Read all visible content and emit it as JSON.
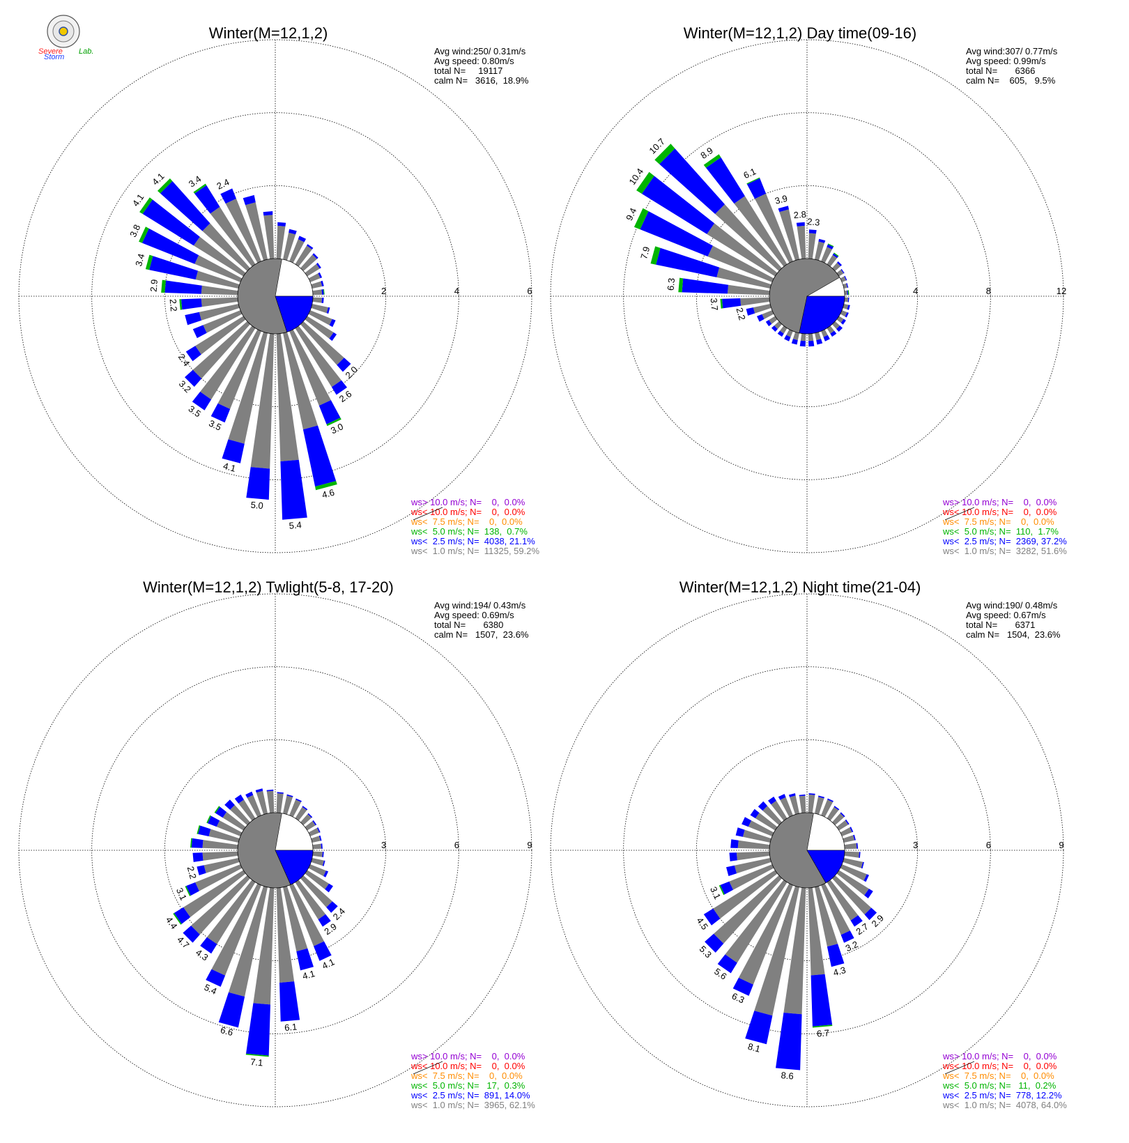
{
  "logo": {
    "text_a": "Severe",
    "text_b": "Storm",
    "text_c": "Lab."
  },
  "legend_labels": [
    "ws> 10.0 m/s; N=",
    "ws< 10.0 m/s; N=",
    "ws<  7.5 m/s; N=",
    "ws<  5.0 m/s; N=",
    "ws<  2.5 m/s; N=",
    "ws<  1.0 m/s; N="
  ],
  "colors": {
    "gt10": "#9400d3",
    "lt10": "#ff0000",
    "lt75": "#ff8c00",
    "lt50": "#00b400",
    "lt25": "#0000ff",
    "lt10ms": "#808080",
    "calm_fill": "#808080",
    "calm_blank": "#ffffff"
  },
  "chart_data": [
    {
      "type": "polar-bar",
      "title": "Winter(M=12,1,2)",
      "stats": [
        "Avg wind:250/ 0.31m/s",
        "Avg speed: 0.80m/s",
        "total N=     19117",
        "calm N=   3616,  18.9%"
      ],
      "rings": [
        "2",
        "4",
        "6"
      ],
      "rmax": 6,
      "legend_values": [
        "  0,  0.0%",
        "  0,  0.0%",
        "  0,  0.0%",
        "138,  0.7%",
        "4038, 21.1%",
        "11325, 59.2%"
      ],
      "bars": [
        {
          "dir": 5,
          "g": 0.9,
          "b": 0.1,
          "gr": 0
        },
        {
          "dir": 15,
          "g": 0.75,
          "b": 0.1,
          "gr": 0
        },
        {
          "dir": 25,
          "g": 0.65,
          "b": 0.1,
          "gr": 0
        },
        {
          "dir": 35,
          "g": 0.6,
          "b": 0.05,
          "gr": 0
        },
        {
          "dir": 45,
          "g": 0.5,
          "b": 0.05,
          "gr": 0
        },
        {
          "dir": 55,
          "g": 0.4,
          "b": 0.05,
          "gr": 0
        },
        {
          "dir": 65,
          "g": 0.3,
          "b": 0.05,
          "gr": 0
        },
        {
          "dir": 75,
          "g": 0.28,
          "b": 0.05,
          "gr": 0
        },
        {
          "dir": 85,
          "g": 0.25,
          "b": 0.05,
          "gr": 0.02
        },
        {
          "dir": 95,
          "g": 0.25,
          "b": 0.05,
          "gr": 0
        },
        {
          "dir": 105,
          "g": 0.45,
          "b": 0.05,
          "gr": 0
        },
        {
          "dir": 115,
          "g": 0.65,
          "b": 0.1,
          "gr": 0
        },
        {
          "dir": 125,
          "g": 0.85,
          "b": 0.1,
          "gr": 0
        },
        {
          "dir": 135,
          "g": 1.5,
          "b": 0.25,
          "gr": 0,
          "label": "2.0"
        },
        {
          "dir": 145,
          "g": 1.9,
          "b": 0.25,
          "gr": 0,
          "label": "2.6"
        },
        {
          "dir": 155,
          "g": 2.2,
          "b": 0.55,
          "gr": 0.05,
          "label": "3.0"
        },
        {
          "dir": 165,
          "g": 2.7,
          "b": 1.6,
          "gr": 0.1,
          "label": "4.6"
        },
        {
          "dir": 175,
          "g": 3.5,
          "b": 1.6,
          "gr": 0,
          "label": "5.4"
        },
        {
          "dir": 185,
          "g": 3.7,
          "b": 0.85,
          "gr": 0,
          "label": "5.0"
        },
        {
          "dir": 195,
          "g": 3.1,
          "b": 0.55,
          "gr": 0,
          "label": "4.1"
        },
        {
          "dir": 205,
          "g": 2.3,
          "b": 0.4,
          "gr": 0,
          "label": "3.5"
        },
        {
          "dir": 215,
          "g": 2.3,
          "b": 0.35,
          "gr": 0,
          "label": "3.5"
        },
        {
          "dir": 225,
          "g": 2.0,
          "b": 0.3,
          "gr": 0,
          "label": "3.2"
        },
        {
          "dir": 235,
          "g": 1.55,
          "b": 0.3,
          "gr": 0,
          "label": "2.4"
        },
        {
          "dir": 245,
          "g": 1.1,
          "b": 0.3,
          "gr": 0
        },
        {
          "dir": 255,
          "g": 1.1,
          "b": 0.4,
          "gr": 0
        },
        {
          "dir": 265,
          "g": 1.0,
          "b": 0.55,
          "gr": 0.05,
          "label": "2.2"
        },
        {
          "dir": 275,
          "g": 1.0,
          "b": 1.0,
          "gr": 0.1,
          "label": "2.9"
        },
        {
          "dir": 285,
          "g": 1.2,
          "b": 1.3,
          "gr": 0.1,
          "label": "3.4"
        },
        {
          "dir": 295,
          "g": 1.35,
          "b": 1.55,
          "gr": 0.1,
          "label": "3.8"
        },
        {
          "dir": 305,
          "g": 1.6,
          "b": 1.65,
          "gr": 0.1,
          "label": "4.1"
        },
        {
          "dir": 315,
          "g": 1.65,
          "b": 1.55,
          "gr": 0.1,
          "label": "4.1"
        },
        {
          "dir": 325,
          "g": 1.85,
          "b": 0.7,
          "gr": 0.05,
          "label": "3.4"
        },
        {
          "dir": 335,
          "g": 1.85,
          "b": 0.3,
          "gr": 0,
          "label": "2.4"
        },
        {
          "dir": 345,
          "g": 1.6,
          "b": 0.2,
          "gr": 0
        },
        {
          "dir": 355,
          "g": 1.2,
          "b": 0.1,
          "gr": 0
        }
      ],
      "calm_fraction": 0.189,
      "calm_blue_fraction": 0.6
    },
    {
      "type": "polar-bar",
      "title": "Winter(M=12,1,2) Day time(09-16)",
      "stats": [
        "Avg wind:307/ 0.77m/s",
        "Avg speed: 0.99m/s",
        "total N=       6366",
        "calm N=    605,   9.5%"
      ],
      "rings": [
        "4",
        "8",
        "12"
      ],
      "rmax": 12,
      "legend_values": [
        "  0,  0.0%",
        "  0,  0.0%",
        "  0,  0.0%",
        "110,  1.7%",
        "2369, 37.2%",
        "3282, 51.6%"
      ],
      "bars": [
        {
          "dir": 5,
          "g": 1.4,
          "b": 0.2,
          "gr": 0,
          "label": "2.3"
        },
        {
          "dir": 15,
          "g": 1.0,
          "b": 0.15,
          "gr": 0
        },
        {
          "dir": 25,
          "g": 0.85,
          "b": 0.15,
          "gr": 0.05
        },
        {
          "dir": 35,
          "g": 0.6,
          "b": 0.1,
          "gr": 0.05
        },
        {
          "dir": 45,
          "g": 0.4,
          "b": 0.1,
          "gr": 0
        },
        {
          "dir": 55,
          "g": 0.3,
          "b": 0.05,
          "gr": 0
        },
        {
          "dir": 65,
          "g": 0.25,
          "b": 0.05,
          "gr": 0
        },
        {
          "dir": 75,
          "g": 0.2,
          "b": 0.05,
          "gr": 0
        },
        {
          "dir": 85,
          "g": 0.15,
          "b": 0.05,
          "gr": 0.05
        },
        {
          "dir": 95,
          "g": 0.2,
          "b": 0.05,
          "gr": 0
        },
        {
          "dir": 105,
          "g": 0.25,
          "b": 0.1,
          "gr": 0
        },
        {
          "dir": 115,
          "g": 0.3,
          "b": 0.1,
          "gr": 0
        },
        {
          "dir": 125,
          "g": 0.3,
          "b": 0.15,
          "gr": 0
        },
        {
          "dir": 135,
          "g": 0.35,
          "b": 0.2,
          "gr": 0
        },
        {
          "dir": 145,
          "g": 0.35,
          "b": 0.2,
          "gr": 0
        },
        {
          "dir": 155,
          "g": 0.35,
          "b": 0.25,
          "gr": 0
        },
        {
          "dir": 165,
          "g": 0.4,
          "b": 0.25,
          "gr": 0
        },
        {
          "dir": 175,
          "g": 0.4,
          "b": 0.3,
          "gr": 0
        },
        {
          "dir": 185,
          "g": 0.4,
          "b": 0.3,
          "gr": 0
        },
        {
          "dir": 195,
          "g": 0.4,
          "b": 0.25,
          "gr": 0
        },
        {
          "dir": 205,
          "g": 0.35,
          "b": 0.25,
          "gr": 0
        },
        {
          "dir": 215,
          "g": 0.35,
          "b": 0.2,
          "gr": 0
        },
        {
          "dir": 225,
          "g": 0.35,
          "b": 0.2,
          "gr": 0
        },
        {
          "dir": 235,
          "g": 0.4,
          "b": 0.2,
          "gr": 0
        },
        {
          "dir": 245,
          "g": 0.6,
          "b": 0.3,
          "gr": 0
        },
        {
          "dir": 255,
          "g": 0.95,
          "b": 0.4,
          "gr": 0,
          "label": "2.2"
        },
        {
          "dir": 265,
          "g": 1.6,
          "b": 1.0,
          "gr": 0.1,
          "label": "3.7"
        },
        {
          "dir": 275,
          "g": 2.3,
          "b": 2.5,
          "gr": 0.2,
          "label": "6.3"
        },
        {
          "dir": 285,
          "g": 3.0,
          "b": 3.4,
          "gr": 0.3,
          "label": "7.9"
        },
        {
          "dir": 295,
          "g": 3.8,
          "b": 4.0,
          "gr": 0.35,
          "label": "9.4"
        },
        {
          "dir": 305,
          "g": 4.4,
          "b": 4.2,
          "gr": 0.35,
          "label": "10.4"
        },
        {
          "dir": 315,
          "g": 4.7,
          "b": 4.1,
          "gr": 0.35,
          "label": "10.7"
        },
        {
          "dir": 325,
          "g": 4.4,
          "b": 2.5,
          "gr": 0.2,
          "label": "8.9"
        },
        {
          "dir": 335,
          "g": 4.0,
          "b": 0.9,
          "gr": 0.05,
          "label": "6.1"
        },
        {
          "dir": 345,
          "g": 2.8,
          "b": 0.2,
          "gr": 0,
          "label": "3.9"
        },
        {
          "dir": 355,
          "g": 1.8,
          "b": 0.2,
          "gr": 0,
          "label": "2.8"
        }
      ],
      "calm_fraction": 0.095,
      "calm_blue_fraction": 0.85
    },
    {
      "type": "polar-bar",
      "title": "Winter(M=12,1,2) Twlight(5-8, 17-20)",
      "stats": [
        "Avg wind:194/ 0.43m/s",
        "Avg speed: 0.69m/s",
        "total N=       6380",
        "calm N=   1507,  23.6%"
      ],
      "rings": [
        "3",
        "6",
        "9"
      ],
      "rmax": 9,
      "legend_values": [
        "  0,  0.0%",
        "  0,  0.0%",
        "  0,  0.0%",
        " 17,  0.3%",
        "891, 14.0%",
        "3965, 62.1%"
      ],
      "bars": [
        {
          "dir": 5,
          "g": 0.8,
          "b": 0.05,
          "gr": 0
        },
        {
          "dir": 15,
          "g": 0.75,
          "b": 0.05,
          "gr": 0
        },
        {
          "dir": 25,
          "g": 0.7,
          "b": 0.05,
          "gr": 0
        },
        {
          "dir": 35,
          "g": 0.55,
          "b": 0.05,
          "gr": 0
        },
        {
          "dir": 45,
          "g": 0.45,
          "b": 0.05,
          "gr": 0
        },
        {
          "dir": 55,
          "g": 0.4,
          "b": 0.05,
          "gr": 0
        },
        {
          "dir": 65,
          "g": 0.4,
          "b": 0.05,
          "gr": 0
        },
        {
          "dir": 75,
          "g": 0.35,
          "b": 0.05,
          "gr": 0
        },
        {
          "dir": 85,
          "g": 0.35,
          "b": 0.05,
          "gr": 0
        },
        {
          "dir": 95,
          "g": 0.4,
          "b": 0.05,
          "gr": 0
        },
        {
          "dir": 105,
          "g": 0.5,
          "b": 0.05,
          "gr": 0
        },
        {
          "dir": 115,
          "g": 0.7,
          "b": 0.1,
          "gr": 0
        },
        {
          "dir": 125,
          "g": 1.05,
          "b": 0.2,
          "gr": 0
        },
        {
          "dir": 135,
          "g": 1.6,
          "b": 0.3,
          "gr": 0,
          "label": "2.4"
        },
        {
          "dir": 145,
          "g": 1.8,
          "b": 0.35,
          "gr": 0,
          "label": "2.9"
        },
        {
          "dir": 155,
          "g": 2.7,
          "b": 0.65,
          "gr": 0,
          "label": "4.1"
        },
        {
          "dir": 165,
          "g": 2.7,
          "b": 0.8,
          "gr": 0,
          "label": "4.1"
        },
        {
          "dir": 175,
          "g": 3.9,
          "b": 1.6,
          "gr": 0,
          "label": "6.1"
        },
        {
          "dir": 185,
          "g": 4.8,
          "b": 2.1,
          "gr": 0.05,
          "label": "7.1"
        },
        {
          "dir": 195,
          "g": 4.6,
          "b": 1.3,
          "gr": 0,
          "label": "6.6"
        },
        {
          "dir": 205,
          "g": 4.0,
          "b": 0.5,
          "gr": 0,
          "label": "5.4"
        },
        {
          "dir": 215,
          "g": 3.0,
          "b": 0.45,
          "gr": 0,
          "label": "4.3"
        },
        {
          "dir": 225,
          "g": 3.1,
          "b": 0.45,
          "gr": 0,
          "label": "4.7"
        },
        {
          "dir": 235,
          "g": 2.9,
          "b": 0.45,
          "gr": 0.05,
          "label": "4.4"
        },
        {
          "dir": 245,
          "g": 2.0,
          "b": 0.4,
          "gr": 0.05,
          "label": "3.1"
        },
        {
          "dir": 255,
          "g": 1.45,
          "b": 0.3,
          "gr": 0,
          "label": "2.2"
        },
        {
          "dir": 265,
          "g": 1.45,
          "b": 0.4,
          "gr": 0
        },
        {
          "dir": 275,
          "g": 1.45,
          "b": 0.45,
          "gr": 0.05
        },
        {
          "dir": 285,
          "g": 1.25,
          "b": 0.45,
          "gr": 0.05
        },
        {
          "dir": 295,
          "g": 1.05,
          "b": 0.4,
          "gr": 0.05
        },
        {
          "dir": 305,
          "g": 1.0,
          "b": 0.35,
          "gr": 0.05
        },
        {
          "dir": 315,
          "g": 0.95,
          "b": 0.3,
          "gr": 0
        },
        {
          "dir": 325,
          "g": 0.9,
          "b": 0.25,
          "gr": 0
        },
        {
          "dir": 335,
          "g": 0.9,
          "b": 0.15,
          "gr": 0
        },
        {
          "dir": 345,
          "g": 0.95,
          "b": 0.1,
          "gr": 0
        },
        {
          "dir": 355,
          "g": 0.9,
          "b": 0.05,
          "gr": 0
        }
      ],
      "calm_fraction": 0.236,
      "calm_blue_fraction": 0.55
    },
    {
      "type": "polar-bar",
      "title": "Winter(M=12,1,2) Night time(21-04)",
      "stats": [
        "Avg wind:190/ 0.48m/s",
        "Avg speed: 0.67m/s",
        "total N=       6371",
        "calm N=   1504,  23.6%"
      ],
      "rings": [
        "3",
        "6",
        "9"
      ],
      "rmax": 9,
      "legend_values": [
        "  0,  0.0%",
        "  0,  0.0%",
        "  0,  0.0%",
        " 11,  0.2%",
        "778, 12.2%",
        "4078, 64.0%"
      ],
      "bars": [
        {
          "dir": 5,
          "g": 0.75,
          "b": 0.05,
          "gr": 0
        },
        {
          "dir": 15,
          "g": 0.7,
          "b": 0.05,
          "gr": 0
        },
        {
          "dir": 25,
          "g": 0.7,
          "b": 0.05,
          "gr": 0
        },
        {
          "dir": 35,
          "g": 0.55,
          "b": 0.05,
          "gr": 0
        },
        {
          "dir": 45,
          "g": 0.5,
          "b": 0.05,
          "gr": 0
        },
        {
          "dir": 55,
          "g": 0.45,
          "b": 0.05,
          "gr": 0
        },
        {
          "dir": 65,
          "g": 0.45,
          "b": 0.05,
          "gr": 0
        },
        {
          "dir": 75,
          "g": 0.45,
          "b": 0.05,
          "gr": 0
        },
        {
          "dir": 85,
          "g": 0.5,
          "b": 0.05,
          "gr": 0
        },
        {
          "dir": 95,
          "g": 0.6,
          "b": 0.05,
          "gr": 0
        },
        {
          "dir": 105,
          "g": 0.8,
          "b": 0.05,
          "gr": 0
        },
        {
          "dir": 115,
          "g": 1.1,
          "b": 0.1,
          "gr": 0
        },
        {
          "dir": 125,
          "g": 1.45,
          "b": 0.2,
          "gr": 0
        },
        {
          "dir": 135,
          "g": 2.0,
          "b": 0.3,
          "gr": 0,
          "label": "2.9"
        },
        {
          "dir": 145,
          "g": 1.85,
          "b": 0.3,
          "gr": 0,
          "label": "2.7"
        },
        {
          "dir": 155,
          "g": 2.2,
          "b": 0.35,
          "gr": 0,
          "label": "3.2"
        },
        {
          "dir": 165,
          "g": 2.5,
          "b": 0.85,
          "gr": 0,
          "label": "4.3"
        },
        {
          "dir": 175,
          "g": 3.6,
          "b": 2.1,
          "gr": 0.05,
          "label": "6.7"
        },
        {
          "dir": 185,
          "g": 5.2,
          "b": 2.3,
          "gr": 0,
          "label": "8.6"
        },
        {
          "dir": 195,
          "g": 5.4,
          "b": 1.2,
          "gr": 0,
          "label": "8.1"
        },
        {
          "dir": 205,
          "g": 4.4,
          "b": 0.5,
          "gr": 0,
          "label": "6.3"
        },
        {
          "dir": 215,
          "g": 3.9,
          "b": 0.5,
          "gr": 0,
          "label": "5.6"
        },
        {
          "dir": 225,
          "g": 3.6,
          "b": 0.5,
          "gr": 0,
          "label": "5.3"
        },
        {
          "dir": 235,
          "g": 3.0,
          "b": 0.45,
          "gr": 0,
          "label": "4.5"
        },
        {
          "dir": 245,
          "g": 1.9,
          "b": 0.4,
          "gr": 0.05,
          "label": "3.1"
        },
        {
          "dir": 255,
          "g": 1.5,
          "b": 0.35,
          "gr": 0
        },
        {
          "dir": 265,
          "g": 1.35,
          "b": 0.3,
          "gr": 0
        },
        {
          "dir": 275,
          "g": 1.3,
          "b": 0.3,
          "gr": 0
        },
        {
          "dir": 285,
          "g": 1.15,
          "b": 0.3,
          "gr": 0
        },
        {
          "dir": 295,
          "g": 1.05,
          "b": 0.3,
          "gr": 0
        },
        {
          "dir": 305,
          "g": 0.95,
          "b": 0.25,
          "gr": 0
        },
        {
          "dir": 315,
          "g": 0.9,
          "b": 0.25,
          "gr": 0
        },
        {
          "dir": 325,
          "g": 0.85,
          "b": 0.2,
          "gr": 0
        },
        {
          "dir": 335,
          "g": 0.8,
          "b": 0.15,
          "gr": 0
        },
        {
          "dir": 345,
          "g": 0.75,
          "b": 0.1,
          "gr": 0
        },
        {
          "dir": 355,
          "g": 0.7,
          "b": 0.05,
          "gr": 0
        }
      ],
      "calm_fraction": 0.236,
      "calm_blue_fraction": 0.5
    }
  ]
}
